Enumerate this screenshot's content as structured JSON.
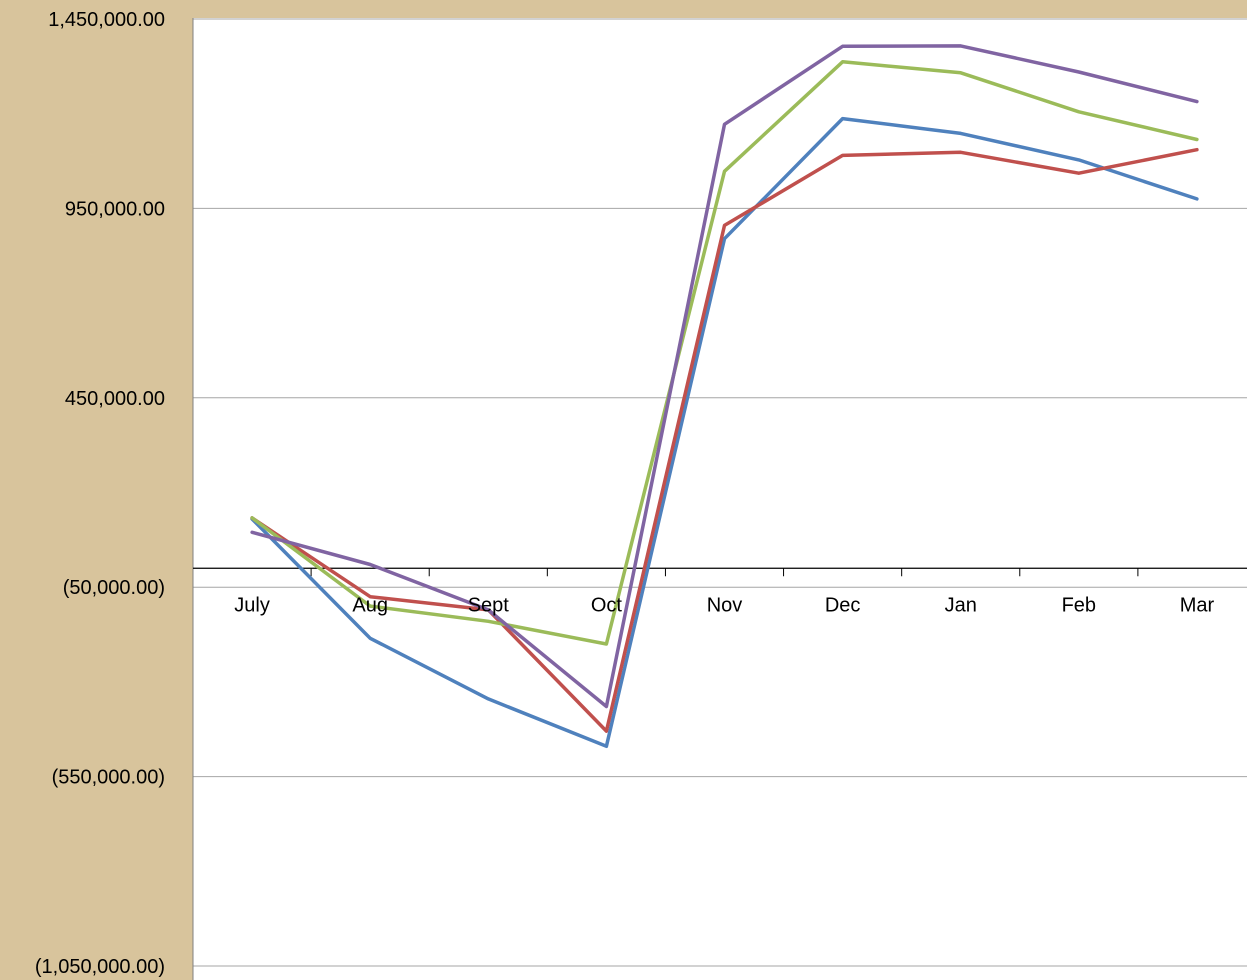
{
  "chart_data": {
    "type": "line",
    "title": "",
    "xlabel": "",
    "ylabel": "",
    "categories": [
      "July",
      "Aug",
      "Sept",
      "Oct",
      "Nov",
      "Dec",
      "Jan",
      "Feb",
      "Mar"
    ],
    "ylim": [
      -1050000,
      1450000
    ],
    "yticks": [
      1450000,
      950000,
      450000,
      -50000,
      -550000,
      -1050000
    ],
    "ytick_labels": [
      "1,450,000.00",
      "950,000.00",
      "450,000.00",
      "(50,000.00)",
      "(550,000.00)",
      "(1,050,000.00)"
    ],
    "grid": true,
    "legend": "none",
    "series": [
      {
        "color": "#4F81BD",
        "values": [
          130000,
          -185000,
          -345000,
          -470000,
          870000,
          1187000,
          1148000,
          1078000,
          975000
        ]
      },
      {
        "color": "#C0504D",
        "values": [
          133000,
          -75000,
          -110000,
          -430000,
          905000,
          1090000,
          1098000,
          1043000,
          1105000
        ]
      },
      {
        "color": "#9BBB59",
        "values": [
          133000,
          -100000,
          -140000,
          -200000,
          1048000,
          1337000,
          1308000,
          1205000,
          1132000
        ]
      },
      {
        "color": "#8064A2",
        "values": [
          95000,
          10000,
          -110000,
          -365000,
          1172000,
          1378000,
          1379000,
          1310000,
          1232000
        ]
      }
    ]
  }
}
